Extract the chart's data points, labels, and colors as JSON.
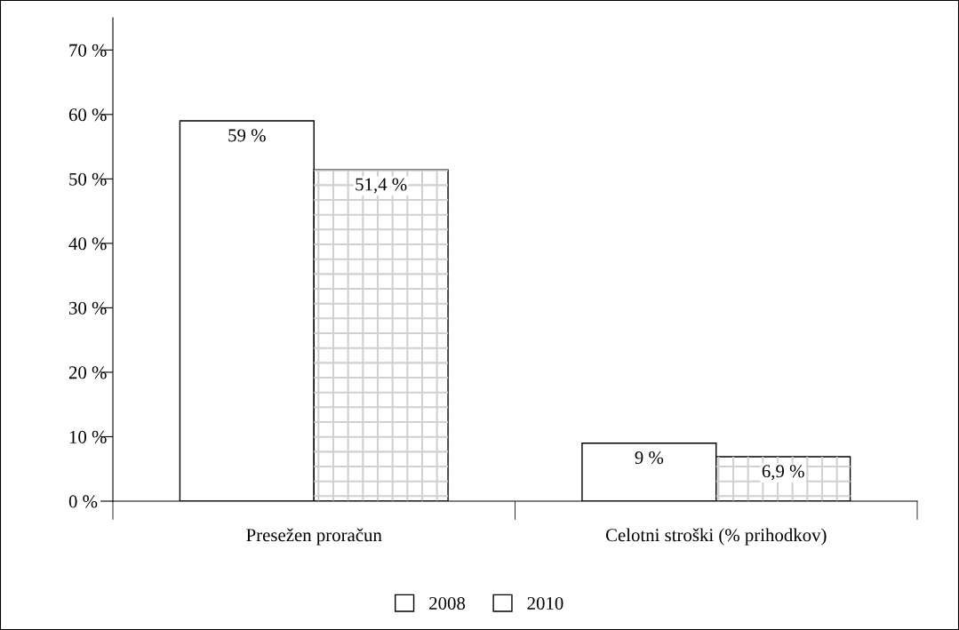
{
  "chart_data": {
    "type": "bar",
    "categories": [
      "Presežen proračun",
      "Celotni stroški (% prihodkov)"
    ],
    "series": [
      {
        "name": "2008",
        "color": "#ffffff",
        "values": [
          59,
          9
        ],
        "value_labels": [
          "59 %",
          "9 %"
        ]
      },
      {
        "name": "2010",
        "color": "#ffffff",
        "values": [
          51.4,
          6.9
        ],
        "value_labels": [
          "51,4 %",
          "6,9 %"
        ]
      }
    ],
    "ylim": [
      0,
      75
    ],
    "yticks": [
      {
        "value": 0,
        "label": "0 %"
      },
      {
        "value": 10,
        "label": "10 %"
      },
      {
        "value": 20,
        "label": "20 %"
      },
      {
        "value": 30,
        "label": "30 %"
      },
      {
        "value": 40,
        "label": "40 %"
      },
      {
        "value": 50,
        "label": "50 %"
      },
      {
        "value": 60,
        "label": "60 %"
      },
      {
        "value": 70,
        "label": "70 %"
      }
    ],
    "grid": false,
    "legend": "bottom"
  }
}
